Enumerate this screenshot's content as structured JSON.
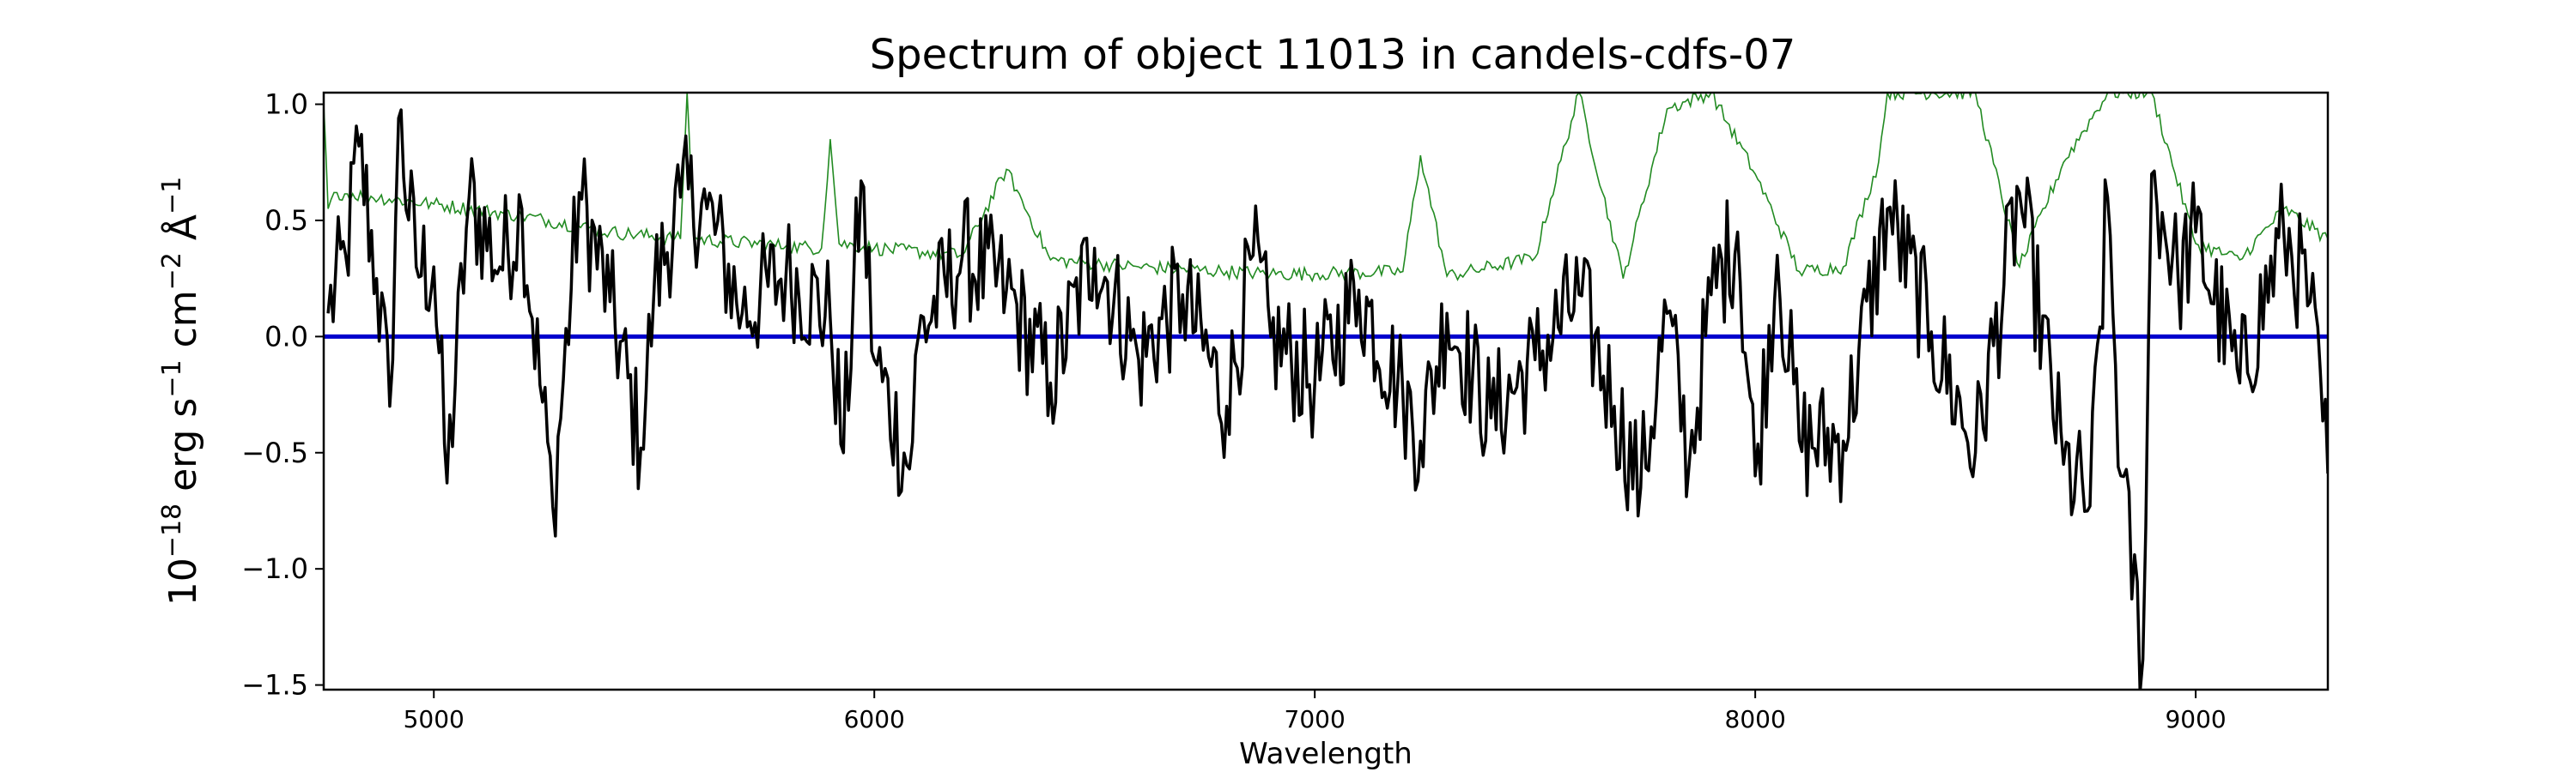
{
  "chart_data": {
    "type": "line",
    "title": "Spectrum of object 11013 in candels-cdfs-07",
    "xlabel": "Wavelength",
    "ylabel": {
      "base": "10",
      "base_exp": "−18",
      "unit1": " erg s",
      "unit1_exp": "−1",
      "unit2": " cm",
      "unit2_exp": "−2",
      "unit3": " Å",
      "unit3_exp": "−1"
    },
    "xlim": [
      4750,
      9300
    ],
    "ylim": [
      -1.52,
      1.05
    ],
    "xticks": [
      5000,
      6000,
      7000,
      8000,
      9000
    ],
    "xtick_labels": [
      "5000",
      "6000",
      "7000",
      "8000",
      "9000"
    ],
    "yticks": [
      -1.5,
      -1.0,
      -0.5,
      0.0,
      0.5,
      1.0
    ],
    "ytick_labels": [
      "−1.5",
      "−1.0",
      "−0.5",
      "0.0",
      "0.5",
      "1.0"
    ],
    "grid": false,
    "colors": {
      "flux": "#000000",
      "error": "#228b22",
      "zero": "#0000cd"
    },
    "series": [
      {
        "role": "flux",
        "note_points": [
          [
            4760,
            0.1
          ],
          [
            4800,
            0.35
          ],
          [
            4830,
            0.82
          ],
          [
            4870,
            0.25
          ],
          [
            4900,
            -0.3
          ],
          [
            4920,
            0.94
          ],
          [
            4960,
            0.3
          ],
          [
            5000,
            0.3
          ],
          [
            5030,
            -0.63
          ],
          [
            5080,
            0.6
          ],
          [
            5150,
            0.3
          ],
          [
            5200,
            0.55
          ],
          [
            5270,
            -0.73
          ],
          [
            5330,
            0.62
          ],
          [
            5400,
            0.15
          ],
          [
            5470,
            -0.48
          ],
          [
            5500,
            0.2
          ],
          [
            5560,
            0.6
          ],
          [
            5620,
            0.55
          ],
          [
            5700,
            0.1
          ],
          [
            5800,
            0.28
          ],
          [
            5900,
            0.08
          ],
          [
            5930,
            -0.5
          ],
          [
            5970,
            0.67
          ],
          [
            6000,
            -0.1
          ],
          [
            6080,
            -0.57
          ],
          [
            6100,
            0.0
          ],
          [
            6200,
            0.35
          ],
          [
            6300,
            0.2
          ],
          [
            6400,
            -0.2
          ],
          [
            6500,
            0.38
          ],
          [
            6600,
            -0.1
          ],
          [
            6700,
            0.18
          ],
          [
            6800,
            -0.3
          ],
          [
            6860,
            0.35
          ],
          [
            6900,
            0.0
          ],
          [
            7000,
            -0.2
          ],
          [
            7100,
            0.2
          ],
          [
            7200,
            -0.25
          ],
          [
            7240,
            -0.45
          ],
          [
            7300,
            0.1
          ],
          [
            7400,
            -0.35
          ],
          [
            7500,
            -0.1
          ],
          [
            7600,
            0.18
          ],
          [
            7680,
            -0.3
          ],
          [
            7740,
            -0.65
          ],
          [
            7800,
            0.1
          ],
          [
            7850,
            -0.55
          ],
          [
            7900,
            0.18
          ],
          [
            7960,
            0.45
          ],
          [
            8000,
            -0.6
          ],
          [
            8050,
            0.35
          ],
          [
            8100,
            -0.45
          ],
          [
            8200,
            -0.45
          ],
          [
            8300,
            0.55
          ],
          [
            8400,
            0.02
          ],
          [
            8500,
            -0.5
          ],
          [
            8600,
            0.62
          ],
          [
            8700,
            -0.55
          ],
          [
            8760,
            -0.73
          ],
          [
            8800,
            0.6
          ],
          [
            8830,
            -0.6
          ],
          [
            8880,
            -1.39
          ],
          [
            8900,
            0.7
          ],
          [
            8960,
            0.25
          ],
          [
            9000,
            0.45
          ],
          [
            9100,
            -0.2
          ],
          [
            9200,
            0.45
          ],
          [
            9260,
            0.15
          ],
          [
            9300,
            -0.59
          ]
        ]
      },
      {
        "role": "error",
        "note_points": [
          [
            4750,
            1.0
          ],
          [
            4760,
            0.55
          ],
          [
            4780,
            0.62
          ],
          [
            5000,
            0.57
          ],
          [
            5200,
            0.52
          ],
          [
            5400,
            0.45
          ],
          [
            5560,
            0.42
          ],
          [
            5575,
            1.05
          ],
          [
            5590,
            0.42
          ],
          [
            5800,
            0.39
          ],
          [
            5880,
            0.38
          ],
          [
            5900,
            0.85
          ],
          [
            5920,
            0.4
          ],
          [
            6000,
            0.38
          ],
          [
            6200,
            0.35
          ],
          [
            6300,
            0.72
          ],
          [
            6400,
            0.33
          ],
          [
            6600,
            0.3
          ],
          [
            6800,
            0.28
          ],
          [
            6900,
            0.27
          ],
          [
            7000,
            0.27
          ],
          [
            7200,
            0.28
          ],
          [
            7240,
            0.78
          ],
          [
            7300,
            0.26
          ],
          [
            7500,
            0.34
          ],
          [
            7600,
            1.05
          ],
          [
            7700,
            0.25
          ],
          [
            7800,
            0.98
          ],
          [
            7900,
            1.05
          ],
          [
            8000,
            0.7
          ],
          [
            8100,
            0.28
          ],
          [
            8200,
            0.3
          ],
          [
            8280,
            0.75
          ],
          [
            8300,
            1.05
          ],
          [
            8400,
            1.05
          ],
          [
            8500,
            1.05
          ],
          [
            8600,
            0.3
          ],
          [
            8700,
            0.75
          ],
          [
            8800,
            1.05
          ],
          [
            8900,
            1.05
          ],
          [
            9000,
            0.4
          ],
          [
            9100,
            0.33
          ],
          [
            9200,
            0.55
          ],
          [
            9300,
            0.42
          ]
        ]
      },
      {
        "role": "zero",
        "note_points": [
          [
            4750,
            0.0
          ],
          [
            9300,
            0.0
          ]
        ]
      }
    ]
  }
}
